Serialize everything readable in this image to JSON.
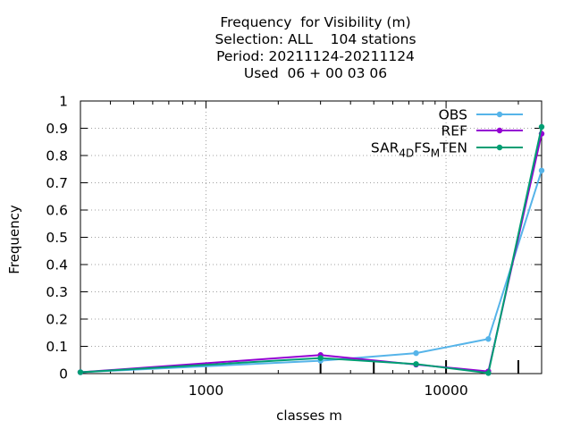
{
  "title": {
    "line1": "Frequency  for Visibility (m)",
    "line2": "Selection: ALL    104 stations",
    "line3": "Period: 20211124-20211124",
    "line4": "Used  06 + 00 03 06"
  },
  "chart_data": {
    "type": "line",
    "xlabel": "classes m",
    "ylabel": "Frequency",
    "xscale": "log",
    "xlim": [
      300,
      25000
    ],
    "ylim": [
      0,
      1
    ],
    "x_tick_labels": [
      "1000",
      "10000"
    ],
    "y_tick_labels": [
      "0",
      "0.1",
      "0.2",
      "0.3",
      "0.4",
      "0.5",
      "0.6",
      "0.7",
      "0.8",
      "0.9",
      "1"
    ],
    "grid": true,
    "legend_position": "top-right",
    "x": [
      300,
      3000,
      7500,
      15000,
      25000
    ],
    "series": [
      {
        "name": "OBS",
        "color": "#56b4e9",
        "values": [
          0.005,
          0.047,
          0.075,
          0.127,
          0.745
        ]
      },
      {
        "name": "REF",
        "color": "#9400d3",
        "values": [
          0.005,
          0.068,
          0.033,
          0.008,
          0.88
        ]
      },
      {
        "name": "SAR_4D FS_M TEN",
        "color": "#009e73",
        "values": [
          0.005,
          0.057,
          0.035,
          0.002,
          0.905
        ]
      }
    ],
    "legend_labels": [
      "OBS",
      "REF"
    ],
    "legend_label_3": {
      "a": "SAR",
      "b": "4",
      "c": "D",
      "d": "FS",
      "e": "M",
      "f": "TEN"
    }
  }
}
